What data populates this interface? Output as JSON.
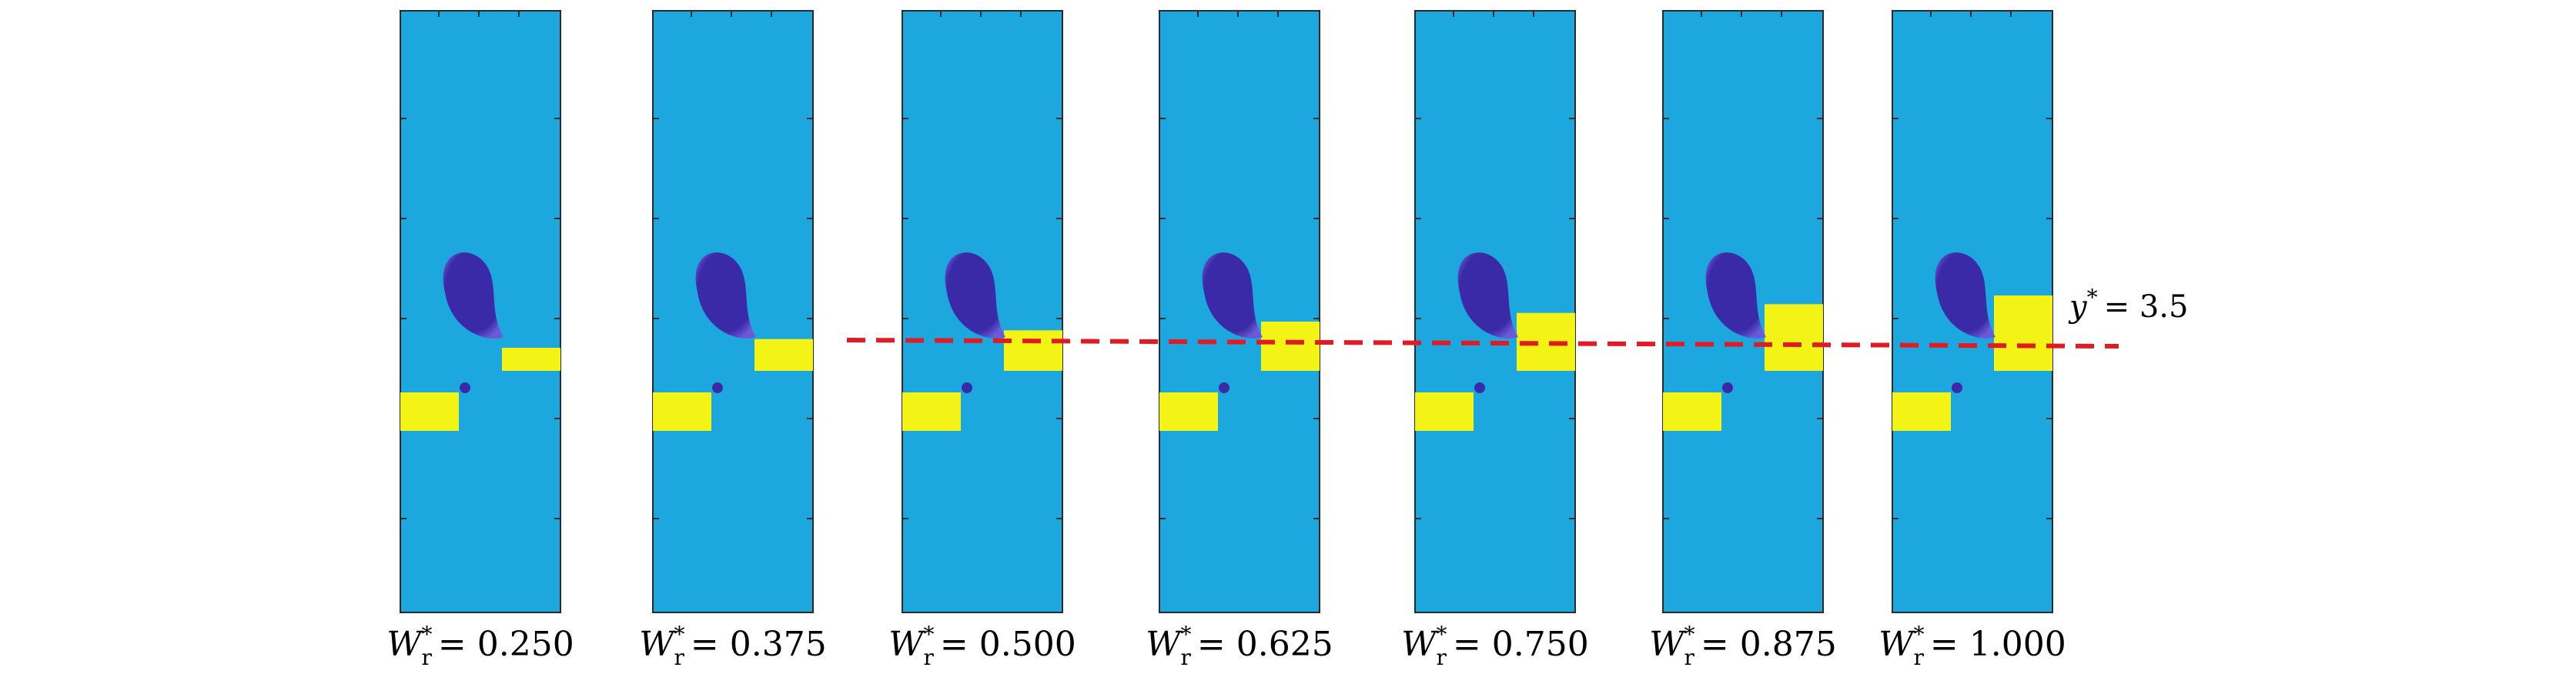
{
  "colors": {
    "background": "#1da7df",
    "droplet": "#3a2aa8",
    "droplet_edge": "#6a5ad8",
    "obstacle": "#f3f316",
    "reference_line": "#e01b24",
    "frame": "#2a2a2a"
  },
  "panels": [
    {
      "label_main": "W",
      "label_sup": "*",
      "label_sub": "r",
      "label_value": "= 0.250",
      "width_ratio": 0.25
    },
    {
      "label_main": "W",
      "label_sup": "*",
      "label_sub": "r",
      "label_value": "= 0.375",
      "width_ratio": 0.375
    },
    {
      "label_main": "W",
      "label_sup": "*",
      "label_sub": "r",
      "label_value": "= 0.500",
      "width_ratio": 0.5
    },
    {
      "label_main": "W",
      "label_sup": "*",
      "label_sub": "r",
      "label_value": "= 0.625",
      "width_ratio": 0.625
    },
    {
      "label_main": "W",
      "label_sup": "*",
      "label_sub": "r",
      "label_value": "= 0.750",
      "width_ratio": 0.75
    },
    {
      "label_main": "W",
      "label_sup": "*",
      "label_sub": "r",
      "label_value": "= 0.875",
      "width_ratio": 0.875
    },
    {
      "label_main": "W",
      "label_sup": "*",
      "label_sub": "r",
      "label_value": "= 1.000",
      "width_ratio": 1.0
    }
  ],
  "reference": {
    "main": "y",
    "sup": "*",
    "value": "= 3.5"
  }
}
